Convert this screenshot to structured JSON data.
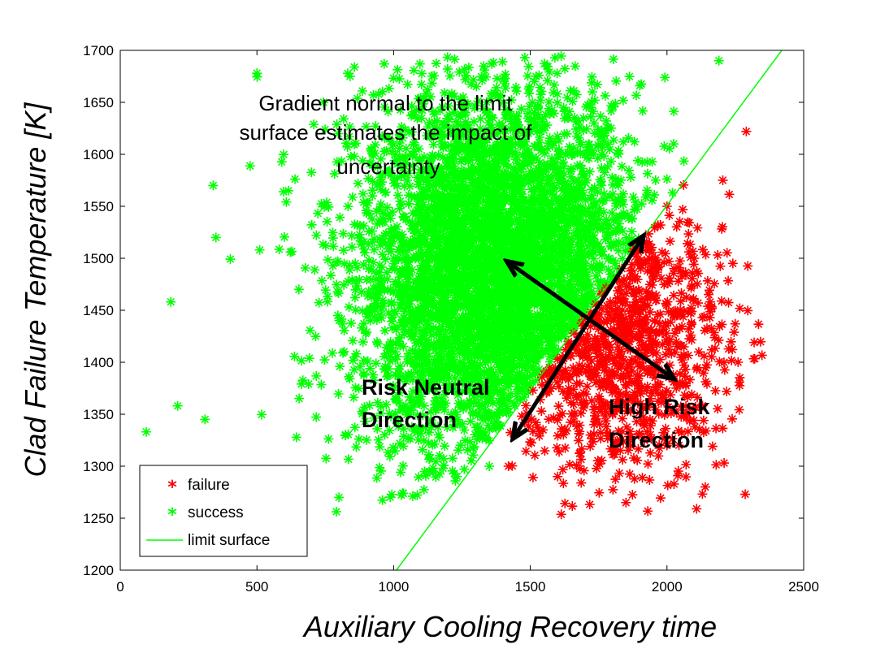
{
  "chart_data": {
    "type": "scatter",
    "xlabel": "Auxiliary Cooling Recovery time",
    "ylabel": "Clad Failure Temperature [K]",
    "xlim": [
      0,
      2500
    ],
    "ylim": [
      1200,
      1700
    ],
    "x_ticks": [
      0,
      500,
      1000,
      1500,
      2000,
      2500
    ],
    "y_ticks": [
      1200,
      1250,
      1300,
      1350,
      1400,
      1450,
      1500,
      1550,
      1600,
      1650,
      1700
    ],
    "grid": false,
    "legend_position": "bottom-left",
    "legend": [
      "failure",
      "success",
      "limit surface"
    ],
    "series": [
      {
        "name": "failure",
        "marker": "*",
        "color": "#ff0000",
        "distribution": {
          "count": 900,
          "x_mean": 1800,
          "x_sd": 210,
          "y_mean": 1420,
          "y_sd": 65,
          "region": "below limit surface"
        },
        "points": [
          [
            2290,
            1622
          ],
          [
            2140,
            1280
          ],
          [
            1420,
            1300
          ],
          [
            1720,
            1330
          ],
          [
            1900,
            1450
          ],
          [
            2100,
            1500
          ],
          [
            2260,
            1400
          ],
          [
            1850,
            1265
          ],
          [
            1600,
            1290
          ],
          [
            2000,
            1550
          ]
        ]
      },
      {
        "name": "success",
        "marker": "*",
        "color": "#00ff00",
        "distribution": {
          "count": 4500,
          "x_mean": 1380,
          "x_sd": 260,
          "y_mean": 1485,
          "y_sd": 90,
          "region": "above limit surface"
        },
        "points": [
          [
            95,
            1333
          ],
          [
            185,
            1458
          ],
          [
            210,
            1358
          ],
          [
            310,
            1345
          ],
          [
            340,
            1570
          ],
          [
            350,
            1520
          ],
          [
            500,
            1678
          ],
          [
            510,
            1508
          ],
          [
            800,
            1270
          ],
          [
            2190,
            1690
          ],
          [
            1480,
            1693
          ],
          [
            1350,
            1300
          ],
          [
            1150,
            1400
          ],
          [
            1700,
            1600
          ],
          [
            1000,
            1500
          ]
        ]
      },
      {
        "name": "limit surface",
        "type": "line",
        "color": "#00ff00",
        "x": [
          1010,
          2420
        ],
        "y": [
          1200,
          1700
        ]
      }
    ],
    "annotations": [
      {
        "lines": [
          "Gradient normal to the limit",
          "surface estimates the impact  of",
          "uncertainty"
        ],
        "weight": "normal"
      },
      {
        "lines": [
          "Risk Neutral",
          "Direction"
        ],
        "weight": "bold"
      },
      {
        "lines": [
          "High Risk",
          "Direction"
        ],
        "weight": "bold"
      }
    ],
    "arrows": [
      {
        "name": "risk-neutral-direction",
        "from": [
          1440,
          1328
        ],
        "to": [
          1910,
          1520
        ]
      },
      {
        "name": "high-risk-direction",
        "from": [
          1420,
          1496
        ],
        "to": [
          2020,
          1385
        ]
      }
    ]
  }
}
